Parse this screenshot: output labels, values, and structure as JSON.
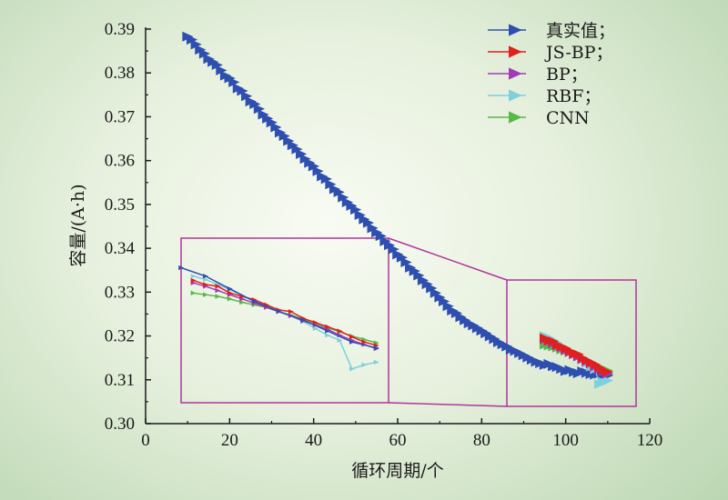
{
  "chart_data": {
    "type": "line",
    "xlabel": "循环周期/个",
    "ylabel": "容量/(A·h)",
    "xlim": [
      0,
      120
    ],
    "ylim": [
      0.3,
      0.39
    ],
    "xticks": [
      "0",
      "20",
      "40",
      "60",
      "80",
      "100",
      "120"
    ],
    "yticks": [
      "0.30",
      "0.31",
      "0.32",
      "0.33",
      "0.34",
      "0.35",
      "0.36",
      "0.37",
      "0.38",
      "0.39"
    ],
    "grid": false,
    "legend_position": "top-right",
    "series": [
      {
        "name": "真实值；",
        "color": "#2e4fb0",
        "x": [
          10,
          11,
          12,
          13,
          14,
          15,
          16,
          17,
          18,
          19,
          20,
          21,
          22,
          23,
          24,
          25,
          26,
          27,
          28,
          29,
          30,
          31,
          32,
          33,
          34,
          35,
          36,
          37,
          38,
          39,
          40,
          41,
          42,
          43,
          44,
          45,
          46,
          47,
          48,
          49,
          50,
          51,
          52,
          53,
          54,
          55,
          56,
          57,
          58,
          59,
          60,
          61,
          62,
          63,
          64,
          65,
          66,
          67,
          68,
          69,
          70,
          71,
          72,
          73,
          74,
          75,
          76,
          77,
          78,
          79,
          80,
          81,
          82,
          83,
          84,
          85,
          86,
          87,
          88,
          89,
          90,
          91,
          92,
          93,
          94,
          95,
          96,
          97,
          98,
          99,
          100,
          101,
          102,
          103,
          104,
          105,
          106,
          107,
          108,
          109,
          110
        ],
        "y": [
          0.3883,
          0.3876,
          0.3865,
          0.3853,
          0.3844,
          0.3832,
          0.3825,
          0.3818,
          0.3806,
          0.3794,
          0.3788,
          0.3779,
          0.3765,
          0.3759,
          0.3747,
          0.3735,
          0.3729,
          0.3718,
          0.3705,
          0.3696,
          0.3687,
          0.3676,
          0.3664,
          0.3656,
          0.3645,
          0.3635,
          0.3626,
          0.3615,
          0.3604,
          0.3595,
          0.3587,
          0.3576,
          0.3564,
          0.3558,
          0.3546,
          0.3535,
          0.3528,
          0.3516,
          0.3505,
          0.3497,
          0.3488,
          0.3476,
          0.3466,
          0.3458,
          0.3446,
          0.3436,
          0.3428,
          0.3416,
          0.3407,
          0.3398,
          0.3386,
          0.3379,
          0.3368,
          0.3356,
          0.3348,
          0.3338,
          0.3327,
          0.3318,
          0.3309,
          0.3298,
          0.3288,
          0.3279,
          0.3268,
          0.3258,
          0.3252,
          0.3243,
          0.3236,
          0.3229,
          0.3224,
          0.3218,
          0.3212,
          0.3206,
          0.3199,
          0.3193,
          0.3186,
          0.3181,
          0.3176,
          0.3169,
          0.3166,
          0.3161,
          0.3156,
          0.3151,
          0.3146,
          0.3141,
          0.3138,
          0.3134,
          0.3136,
          0.3131,
          0.3129,
          0.3125,
          0.312,
          0.3122,
          0.3118,
          0.3115,
          0.3119,
          0.3116,
          0.3113,
          0.3112,
          0.3114,
          0.3111,
          0.311
        ],
        "inset_x": [
          94,
          96,
          98,
          100,
          102,
          104,
          106,
          108,
          110
        ],
        "inset_y": [
          0.321,
          0.32,
          0.3185,
          0.317,
          0.3158,
          0.3148,
          0.3135,
          0.3122,
          0.3115
        ]
      },
      {
        "name": "JS-BP；",
        "color": "#e0201e",
        "x": [
          95,
          96,
          97,
          98,
          99,
          100,
          101,
          102,
          103,
          104,
          105,
          106,
          107,
          108,
          109,
          110
        ],
        "y": [
          0.3195,
          0.319,
          0.3188,
          0.318,
          0.3176,
          0.3172,
          0.3166,
          0.316,
          0.3158,
          0.315,
          0.3145,
          0.314,
          0.3135,
          0.3128,
          0.3122,
          0.3118
        ]
      },
      {
        "name": "BP；",
        "color": "#a23ab8",
        "x": [
          95,
          96,
          97,
          98,
          99,
          100,
          101,
          102,
          103,
          104,
          105,
          106,
          107,
          108,
          109,
          110
        ],
        "y": [
          0.3192,
          0.3188,
          0.3183,
          0.3178,
          0.3173,
          0.3168,
          0.3163,
          0.3158,
          0.3153,
          0.3147,
          0.3142,
          0.3137,
          0.313,
          0.3124,
          0.3119,
          0.3114
        ]
      },
      {
        "name": "RBF；",
        "color": "#7fd0dc",
        "x": [
          95,
          96,
          97,
          98,
          99,
          100,
          101,
          102,
          103,
          104,
          105,
          106,
          107,
          108,
          109,
          110
        ],
        "y": [
          0.32,
          0.3196,
          0.319,
          0.3184,
          0.3177,
          0.317,
          0.3165,
          0.3159,
          0.3153,
          0.3146,
          0.3138,
          0.313,
          0.3124,
          0.309,
          0.3095,
          0.3098
        ]
      },
      {
        "name": "CNN",
        "color": "#58b848",
        "x": [
          95,
          96,
          97,
          98,
          99,
          100,
          101,
          102,
          103,
          104,
          105,
          106,
          107,
          108,
          109,
          110
        ],
        "y": [
          0.318,
          0.3178,
          0.3176,
          0.3173,
          0.3169,
          0.3166,
          0.3163,
          0.3158,
          0.3154,
          0.3149,
          0.3144,
          0.3139,
          0.3134,
          0.3129,
          0.3125,
          0.3121
        ]
      }
    ]
  }
}
